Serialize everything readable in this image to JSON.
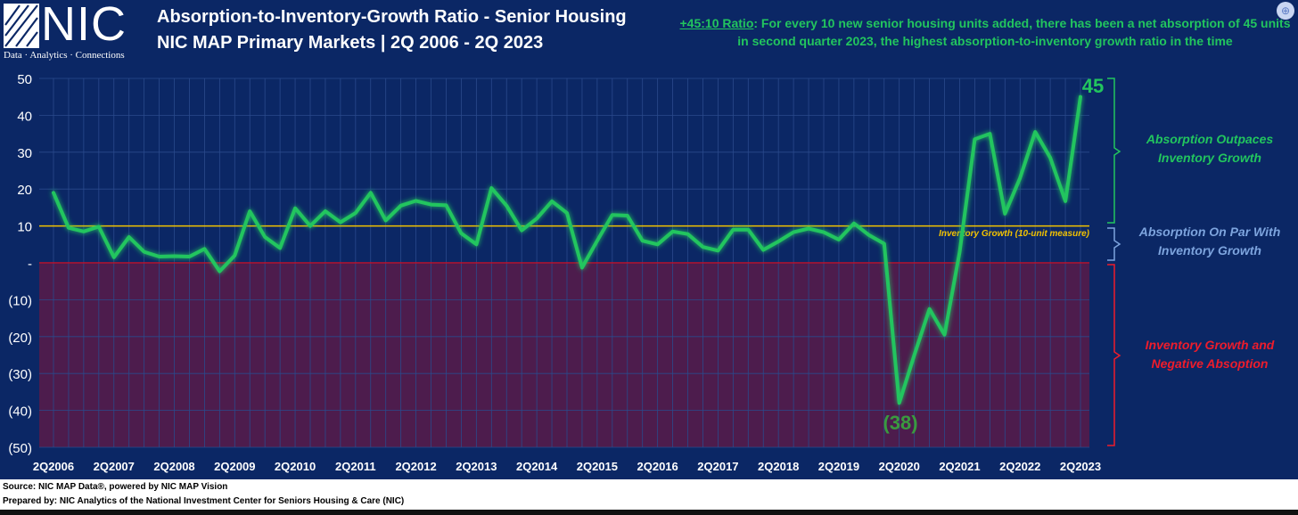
{
  "logo": {
    "name": "NIC",
    "tagline": "Data · Analytics · Connections"
  },
  "titles": {
    "line1": "Absorption-to-Inventory-Growth Ratio - Senior Housing",
    "line2": "NIC MAP Primary Markets | 2Q 2006 - 2Q 2023"
  },
  "note": {
    "key": "+45:10 Ratio",
    "text": ": For every 10 new senior housing units added, there has been a net absorption of 45 units in second quarter 2023, the highest absorption-to-inventory growth ratio in the time"
  },
  "zones": {
    "green": [
      "Absorption Outpaces",
      "Inventory Growth"
    ],
    "blue": [
      "Absorption On Par With",
      "Inventory Growth"
    ],
    "red": [
      "Inventory Growth and",
      "Negative Absoption"
    ]
  },
  "footer": {
    "line1": "Source: NIC MAP Data®, powered by NIC MAP Vision",
    "line2": "Prepared by: NIC Analytics of the National Investment Center for Seniors Housing & Care (NIC)"
  },
  "colors": {
    "background": "#0b2765",
    "line": "#22c55e",
    "reference": "#f2c200",
    "negative_zone": "#4d1c4d",
    "zero_line": "#c0102a",
    "brace_green": "#22c55e",
    "brace_blue": "#7da4de",
    "brace_red": "#ef1c2b"
  },
  "chart_data": {
    "type": "line",
    "x_start": "2Q2006",
    "x_ticks": [
      "2Q2006",
      "2Q2007",
      "2Q2008",
      "2Q2009",
      "2Q2010",
      "2Q2011",
      "2Q2012",
      "2Q2013",
      "2Q2014",
      "2Q2015",
      "2Q2016",
      "2Q2017",
      "2Q2018",
      "2Q2019",
      "2Q2020",
      "2Q2021",
      "2Q2022",
      "2Q2023"
    ],
    "y_ticks": [
      "50",
      "40",
      "30",
      "20",
      "10",
      "-",
      "(10)",
      "(20)",
      "(30)",
      "(40)",
      "(50)"
    ],
    "ylim": [
      -50,
      50
    ],
    "grid": true,
    "series": [
      {
        "values": [
          19,
          9.5,
          8.5,
          9.8,
          1.5,
          7,
          3,
          1.7,
          1.8,
          1.7,
          3.8,
          -2.3,
          2,
          14,
          7,
          4,
          14.8,
          10,
          14,
          11,
          13.5,
          19,
          11.5,
          15.5,
          16.8,
          15.8,
          15.6,
          8,
          5,
          20.3,
          15.5,
          8.8,
          12,
          16.7,
          13.5,
          -1.3,
          6,
          13,
          12.8,
          6,
          5,
          8.5,
          7.8,
          4.3,
          3.3,
          9,
          9,
          3.5,
          5.8,
          8.3,
          9.3,
          8.3,
          6.3,
          10.7,
          7.5,
          5.2,
          -38,
          -25,
          -12.5,
          -19.5,
          3,
          33.5,
          35,
          13.3,
          23,
          35.5,
          28.5,
          16.7,
          45
        ]
      }
    ],
    "reference_line": {
      "value": 10,
      "label": "Inventory Growth (10-unit measure)"
    },
    "annotations": [
      {
        "label": "45",
        "value": 45,
        "x": "2Q2023"
      },
      {
        "label": "(38)",
        "value": -38,
        "x": "2Q2020"
      }
    ]
  }
}
